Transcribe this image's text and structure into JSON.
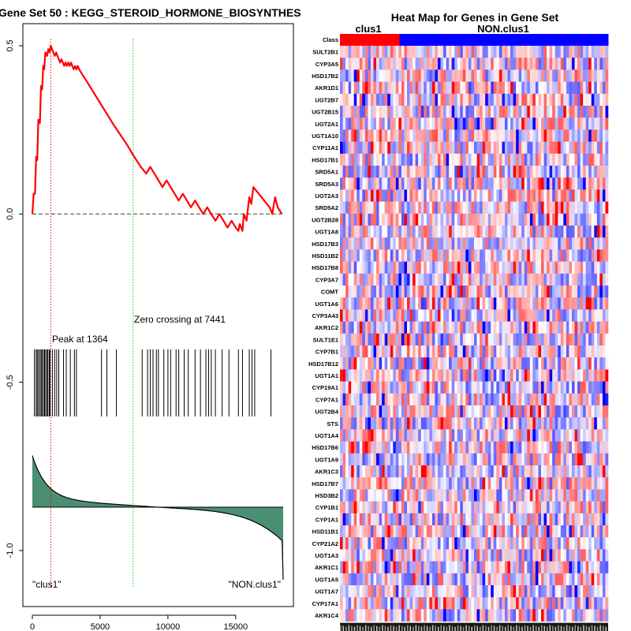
{
  "chart_data": [
    {
      "type": "line",
      "title": "Gene Set  50 : KEGG_STEROID_HORMONE_BIOSYNTHES",
      "xlim": [
        0,
        18500
      ],
      "ylim": [
        -1.12,
        0.55
      ],
      "x_ticks": [
        0,
        5000,
        10000,
        15000
      ],
      "x_tick_labels": [
        "0",
        "5000",
        "10000",
        "15000"
      ],
      "y_ticks": [
        0.5,
        0.0,
        -0.5,
        -1.0
      ],
      "y_tick_labels": [
        "0.5",
        "0.0",
        "-0.5",
        "-1.0"
      ],
      "series": [
        {
          "name": "running enrichment score",
          "color": "#ff0000",
          "x": [
            0,
            100,
            200,
            280,
            360,
            440,
            560,
            640,
            720,
            800,
            880,
            960,
            1080,
            1180,
            1260,
            1364,
            1450,
            1550,
            1650,
            1760,
            1850,
            1950,
            2050,
            2150,
            2250,
            2350,
            2450,
            2550,
            2650,
            2750,
            2850,
            2950,
            3050,
            3150,
            3250,
            3350,
            3450,
            3600,
            4000,
            5000,
            6000,
            7000,
            7441,
            8000,
            8400,
            8700,
            9000,
            9300,
            9600,
            9900,
            10200,
            10500,
            10800,
            11100,
            11400,
            11700,
            12000,
            12300,
            12600,
            12900,
            13200,
            13500,
            13800,
            14100,
            14400,
            14700,
            15000,
            15200,
            15300,
            15500,
            15600,
            15800,
            16000,
            16150,
            16300,
            16700,
            17100,
            17500,
            17700,
            17900,
            18100,
            18400
          ],
          "y": [
            0.0,
            0.06,
            0.06,
            0.17,
            0.16,
            0.28,
            0.27,
            0.38,
            0.37,
            0.44,
            0.43,
            0.48,
            0.47,
            0.49,
            0.48,
            0.5,
            0.49,
            0.48,
            0.47,
            0.48,
            0.47,
            0.46,
            0.45,
            0.46,
            0.45,
            0.44,
            0.45,
            0.44,
            0.45,
            0.44,
            0.45,
            0.44,
            0.43,
            0.44,
            0.43,
            0.44,
            0.43,
            0.42,
            0.395,
            0.33,
            0.265,
            0.205,
            0.175,
            0.14,
            0.12,
            0.14,
            0.12,
            0.1,
            0.08,
            0.1,
            0.08,
            0.06,
            0.04,
            0.06,
            0.04,
            0.02,
            0.04,
            0.02,
            0.0,
            0.02,
            0.0,
            -0.02,
            0.0,
            -0.02,
            -0.04,
            -0.02,
            -0.04,
            -0.05,
            -0.03,
            -0.05,
            0.0,
            -0.02,
            0.05,
            0.03,
            0.08,
            0.06,
            0.04,
            0.02,
            0.0,
            0.05,
            0.02,
            0.0
          ]
        }
      ],
      "baseline": 0.0,
      "peak": {
        "position": 1364,
        "label": "Peak at 1364"
      },
      "zero_crossing": {
        "position": 7441,
        "label": "Zero crossing at 7441"
      },
      "hit_positions": [
        150,
        280,
        360,
        450,
        560,
        650,
        720,
        820,
        900,
        980,
        1080,
        1150,
        1250,
        1300,
        1480,
        1650,
        1800,
        1950,
        2300,
        2500,
        2800,
        3100,
        3250,
        5100,
        5500,
        6200,
        8100,
        8500,
        8700,
        8900,
        9150,
        9300,
        9700,
        10000,
        10200,
        10600,
        10800,
        11200,
        11500,
        12000,
        12400,
        12800,
        13000,
        13200,
        13500,
        14000,
        14500,
        15200,
        15500,
        16000,
        16200,
        16400,
        17600
      ],
      "ranked_metric": {
        "label_left": "\"clus1\"",
        "label_right": "\"NON.clus1\"",
        "fill_color": "#4a8f73",
        "start": 0.48,
        "end": -0.3
      }
    },
    {
      "type": "heatmap",
      "title": "Heat Map for Genes in Gene Set",
      "class_row_label": "Class",
      "classes": [
        {
          "name": "clus1",
          "color": "#ff0000",
          "samples": 10
        },
        {
          "name": "NON.clus1",
          "color": "#0000ff",
          "samples": 35
        }
      ],
      "genes": [
        "SULT2B1",
        "CYP3A5",
        "HSD17B2",
        "AKR1D1",
        "UGT2B7",
        "UGT2B15",
        "UGT2A1",
        "UGT1A10",
        "CYP11A1",
        "HSD17B1",
        "SRD5A1",
        "SRD5A3",
        "UGT2A3",
        "SRD5A2",
        "UGT2B28",
        "UGT1A8",
        "HSD17B3",
        "HSD11B2",
        "HSD17B8",
        "CYP3A7",
        "COMT",
        "UGT1A6",
        "CYP3A43",
        "AKR1C2",
        "SULT1E1",
        "CYP7B1",
        "HSD17B12",
        "UGT1A1",
        "CYP19A1",
        "CYP7A1",
        "UGT2B4",
        "STS",
        "UGT1A4",
        "HSD17B6",
        "UGT1A9",
        "AKR1C3",
        "HSD17B7",
        "HSD3B2",
        "CYP1B1",
        "CYP1A1",
        "HSD11B1",
        "CYP21A2",
        "UGT1A3",
        "AKR1C1",
        "UGT1A5",
        "UGT1A7",
        "CYP17A1",
        "AKR1C4"
      ],
      "color_scale": [
        "#0000ff",
        "#ffffff",
        "#ff0000"
      ]
    }
  ]
}
